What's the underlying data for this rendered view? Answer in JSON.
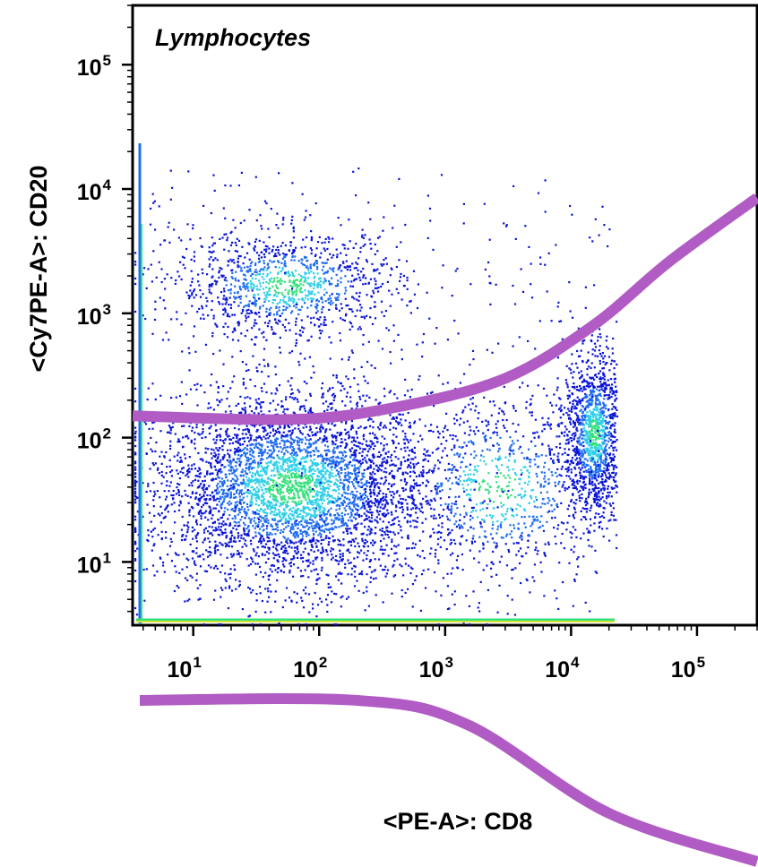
{
  "chart_data": {
    "type": "scatter",
    "title": "Lymphocytes",
    "xlabel": "<PE-A>: CD8",
    "ylabel": "<Cy7PE-A>: CD20",
    "xscale": "log",
    "yscale": "log",
    "xlim": [
      3.3,
      300000
    ],
    "ylim": [
      3.1,
      300000
    ],
    "x_ticks": [
      {
        "base": "10",
        "exp": "1",
        "value": 10
      },
      {
        "base": "10",
        "exp": "2",
        "value": 100
      },
      {
        "base": "10",
        "exp": "3",
        "value": 1000
      },
      {
        "base": "10",
        "exp": "4",
        "value": 10000
      },
      {
        "base": "10",
        "exp": "5",
        "value": 100000
      }
    ],
    "y_ticks": [
      {
        "base": "10",
        "exp": "1",
        "value": 10
      },
      {
        "base": "10",
        "exp": "2",
        "value": 100
      },
      {
        "base": "10",
        "exp": "3",
        "value": 1000
      },
      {
        "base": "10",
        "exp": "4",
        "value": 10000
      },
      {
        "base": "10",
        "exp": "5",
        "value": 100000
      }
    ],
    "colormap": [
      "#0a14d6",
      "#1e6cf0",
      "#2ecfe8",
      "#33e07a",
      "#d8e63a"
    ],
    "clusters": [
      {
        "x_center": 60,
        "y_center": 40,
        "x_spread_decades": 0.55,
        "y_spread_decades": 0.38,
        "n": 4200
      },
      {
        "x_center": 55,
        "y_center": 1700,
        "x_spread_decades": 0.45,
        "y_spread_decades": 0.22,
        "n": 1100
      },
      {
        "x_center": 15000,
        "y_center": 110,
        "x_spread_decades": 0.12,
        "y_spread_decades": 0.33,
        "n": 1300
      },
      {
        "x_center": 2600,
        "y_center": 40,
        "x_spread_decades": 0.45,
        "y_spread_decades": 0.4,
        "n": 900
      }
    ],
    "gates": [
      {
        "name": "",
        "color": "#b05cc4",
        "points": [
          [
            3.3,
            150
          ],
          [
            60,
            140
          ],
          [
            400,
            175
          ],
          [
            3000,
            300
          ],
          [
            15000,
            800
          ],
          [
            60000,
            2600
          ],
          [
            300000,
            8500
          ]
        ]
      }
    ],
    "decorations": {
      "color": "#b05cc4",
      "curve_under_x_axis": [
        [
          3.3,
          1
        ],
        [
          200,
          1
        ],
        [
          1500,
          0.85
        ],
        [
          20000,
          0.3
        ],
        [
          300000,
          0
        ]
      ]
    }
  }
}
